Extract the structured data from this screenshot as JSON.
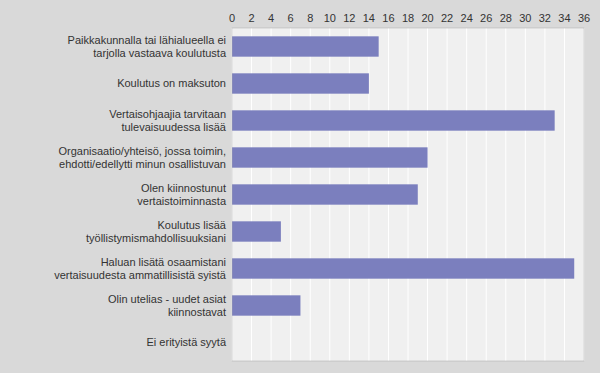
{
  "chart_data": {
    "type": "bar",
    "orientation": "horizontal",
    "categories": [
      "Ei erityistä syytä",
      "Olin utelias - uudet asiat\nkiinnostavat",
      "Haluan lisätä osaamistani\nvertaisuudesta ammatillisistä syistä",
      "Koulutus lisää\ntyöllistymismahdollisuuksiani",
      "Olen kiinnostunut\nvertaistoiminnasta",
      "Organisaatio/yhteisö, jossa toimin,\nehdotti/edellytti minun osallistuvan",
      "Vertaisohjaajia tarvitaan\ntulevaisuudessa lisää",
      "Koulutus on maksuton",
      "Paikkakunnalla tai lähialueella ei\ntarjolla vastaava koulutusta"
    ],
    "values": [
      0,
      7,
      35,
      5,
      19,
      20,
      33,
      14,
      15
    ],
    "color": "#7b7fbe",
    "xlim": [
      0,
      36
    ],
    "xticks": [
      0,
      2,
      4,
      6,
      8,
      10,
      12,
      14,
      16,
      18,
      20,
      22,
      24,
      26,
      28,
      30,
      32,
      34,
      36
    ],
    "grid": true
  }
}
